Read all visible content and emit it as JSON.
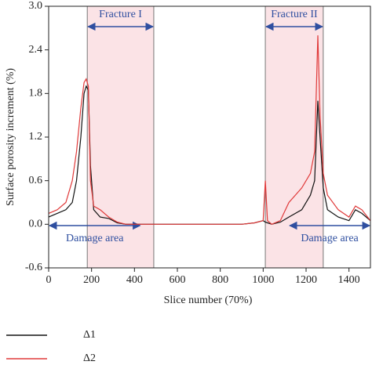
{
  "chart_data": {
    "type": "line",
    "x_label": "Slice number (70%)",
    "y_label": "Surface porosity increment (%)",
    "x": [
      0,
      40,
      80,
      110,
      130,
      150,
      165,
      175,
      185,
      195,
      210,
      240,
      280,
      320,
      360,
      900,
      960,
      1000,
      1010,
      1020,
      1040,
      1080,
      1120,
      1180,
      1220,
      1240,
      1255,
      1265,
      1280,
      1300,
      1350,
      1400,
      1430,
      1460,
      1500
    ],
    "series": [
      {
        "name": "Δ1",
        "color": "#111111",
        "values": [
          0.1,
          0.15,
          0.2,
          0.3,
          0.6,
          1.2,
          1.8,
          1.9,
          1.85,
          0.8,
          0.2,
          0.1,
          0.08,
          0.02,
          0,
          0,
          0.02,
          0.05,
          0.03,
          0.02,
          0,
          0.03,
          0.1,
          0.2,
          0.4,
          0.6,
          1.7,
          1.2,
          0.5,
          0.2,
          0.1,
          0.05,
          0.2,
          0.15,
          0.05
        ]
      },
      {
        "name": "Δ2",
        "color": "#e03a3a",
        "values": [
          0.15,
          0.2,
          0.3,
          0.6,
          1.0,
          1.6,
          1.95,
          2.0,
          1.9,
          0.6,
          0.25,
          0.2,
          0.1,
          0.03,
          0,
          0,
          0.02,
          0.05,
          0.6,
          0.05,
          0,
          0.05,
          0.3,
          0.5,
          0.7,
          1.0,
          2.6,
          1.5,
          0.7,
          0.4,
          0.2,
          0.1,
          0.25,
          0.2,
          0.05
        ]
      }
    ],
    "regions": [
      {
        "label": "Fracture I",
        "range": [
          180,
          490
        ]
      },
      {
        "label": "Fracture II",
        "range": [
          1010,
          1280
        ]
      }
    ],
    "damage_areas": [
      {
        "label": "Damage area",
        "range": [
          0,
          430
        ]
      },
      {
        "label": "Damage area",
        "range": [
          1120,
          1500
        ]
      }
    ],
    "xlim": [
      0,
      1500
    ],
    "ylim": [
      -0.6,
      3.0
    ],
    "xticks": [
      0,
      200,
      400,
      600,
      800,
      1000,
      1200,
      1400
    ],
    "yticks": [
      {
        "value": 3.0,
        "label": "3.0"
      },
      2.4,
      1.8,
      1.2,
      0.6,
      {
        "value": 0.0,
        "label": "0.0"
      },
      -0.6
    ]
  }
}
